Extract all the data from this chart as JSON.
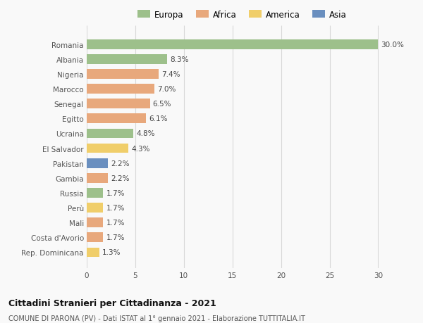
{
  "categories": [
    "Romania",
    "Albania",
    "Nigeria",
    "Marocco",
    "Senegal",
    "Egitto",
    "Ucraina",
    "El Salvador",
    "Pakistan",
    "Gambia",
    "Russia",
    "Perù",
    "Mali",
    "Costa d'Avorio",
    "Rep. Dominicana"
  ],
  "values": [
    30.0,
    8.3,
    7.4,
    7.0,
    6.5,
    6.1,
    4.8,
    4.3,
    2.2,
    2.2,
    1.7,
    1.7,
    1.7,
    1.7,
    1.3
  ],
  "continents": [
    "Europa",
    "Europa",
    "Africa",
    "Africa",
    "Africa",
    "Africa",
    "Europa",
    "America",
    "Asia",
    "Africa",
    "Europa",
    "America",
    "Africa",
    "Africa",
    "America"
  ],
  "colors": {
    "Europa": "#9DC08B",
    "Africa": "#E8A87C",
    "America": "#F0CE6A",
    "Asia": "#6A8FBF"
  },
  "xlim": [
    0,
    32
  ],
  "xticks": [
    0,
    5,
    10,
    15,
    20,
    25,
    30
  ],
  "title": "Cittadini Stranieri per Cittadinanza - 2021",
  "subtitle": "COMUNE DI PARONA (PV) - Dati ISTAT al 1° gennaio 2021 - Elaborazione TUTTITALIA.IT",
  "background_color": "#f9f9f9",
  "grid_color": "#d8d8d8",
  "bar_height": 0.65
}
